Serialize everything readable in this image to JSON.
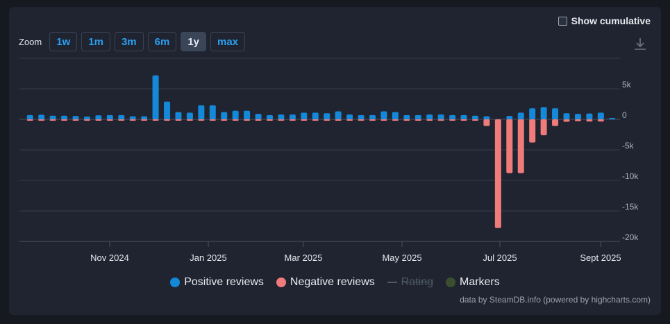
{
  "controls": {
    "cumulative_label": "Show cumulative",
    "zoom_label": "Zoom",
    "zoom_buttons": [
      "1w",
      "1m",
      "3m",
      "6m",
      "1y",
      "max"
    ],
    "active_zoom": "1y"
  },
  "legend": {
    "positive": "Positive reviews",
    "negative": "Negative reviews",
    "rating": "Rating",
    "markers": "Markers"
  },
  "credit": "data by SteamDB.info (powered by highcharts.com)",
  "colors": {
    "positive": "#1589d9",
    "negative": "#f07b7b",
    "markers": "#3b4f2e"
  },
  "chart_data": {
    "type": "bar",
    "y_ticks": [
      "5k",
      "0",
      "-5k",
      "-10k",
      "-15k",
      "-20k"
    ],
    "x_ticks": [
      "Nov 2024",
      "Jan 2025",
      "Mar 2025",
      "May 2025",
      "Jul 2025",
      "Sept 2025"
    ],
    "ylim": [
      -20000,
      10000
    ],
    "series": [
      {
        "name": "Positive reviews",
        "color": "#1589d9",
        "values": [
          700,
          750,
          600,
          600,
          550,
          450,
          650,
          700,
          700,
          500,
          500,
          7200,
          2900,
          1200,
          1100,
          2300,
          2300,
          1200,
          1400,
          1400,
          900,
          700,
          800,
          800,
          1100,
          1100,
          1000,
          1300,
          800,
          700,
          700,
          1300,
          1200,
          700,
          700,
          800,
          800,
          700,
          700,
          600,
          500,
          0,
          550,
          1100,
          1800,
          2000,
          1800,
          1000,
          900,
          950,
          1100,
          150
        ]
      },
      {
        "name": "Negative reviews",
        "color": "#f07b7b",
        "values": [
          -50,
          -50,
          -50,
          -50,
          -50,
          -50,
          -50,
          -50,
          -50,
          -50,
          -50,
          -50,
          -50,
          -50,
          -50,
          -50,
          -50,
          -50,
          -50,
          -50,
          -50,
          -50,
          -50,
          -50,
          -50,
          -50,
          -50,
          -50,
          -50,
          -50,
          -50,
          -50,
          -50,
          -50,
          -50,
          -50,
          -50,
          -50,
          -50,
          -50,
          -1100,
          -17800,
          -8800,
          -8800,
          -3800,
          -2600,
          -1100,
          -400,
          -300,
          -350,
          -350,
          0
        ]
      }
    ]
  }
}
